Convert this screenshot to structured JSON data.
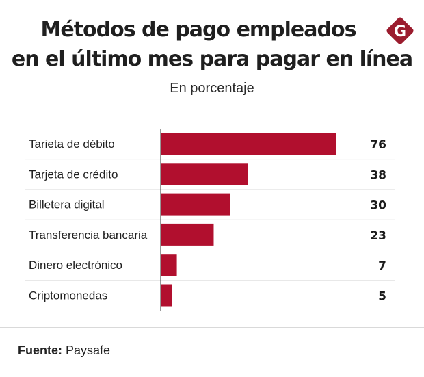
{
  "header": {
    "title_line1": "Métodos de pago empleados",
    "title_line2": "en el último mes para pagar en línea",
    "subtitle": "En porcentaje",
    "logo_letter": "G"
  },
  "colors": {
    "bar": "#b10f2e",
    "logo": "#9b1c2e",
    "text": "#1e1e1e",
    "gridline": "#d9d9d9",
    "axis": "#333333"
  },
  "chart_data": {
    "type": "bar",
    "orientation": "horizontal",
    "title": "Métodos de pago empleados en el último mes para pagar en línea",
    "subtitle": "En porcentaje",
    "categories": [
      "Tarieta de débito",
      "Tarjeta de crédito",
      "Billetera digital",
      "Transferencia bancaria",
      "Dinero electrónico",
      "Criptomonedas"
    ],
    "values": [
      76,
      38,
      30,
      23,
      7,
      5
    ],
    "value_labels": [
      "76",
      "38",
      "30",
      "23",
      "7",
      "5"
    ],
    "xlabel": "",
    "ylabel": "",
    "xlim": [
      0,
      100
    ],
    "grid": false,
    "legend": "none",
    "unit": "%"
  },
  "footer": {
    "source_label": "Fuente:",
    "source_value": "Paysafe"
  }
}
